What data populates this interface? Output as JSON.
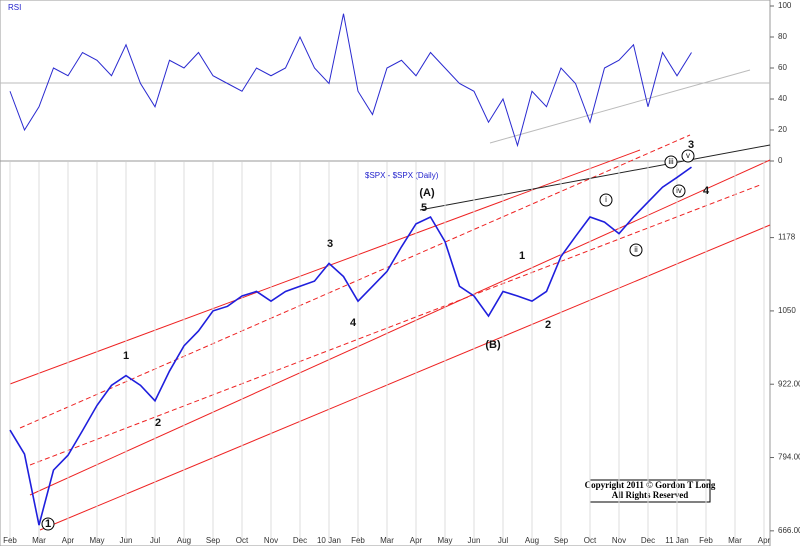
{
  "chart_data": [
    {
      "type": "line",
      "title": "RSI",
      "ylim": [
        0,
        100
      ],
      "yticks": [
        0,
        20,
        40,
        60,
        80,
        100
      ],
      "categories": [
        "Feb",
        null,
        "Mar",
        null,
        "Apr",
        null,
        "May",
        null,
        "Jun",
        null,
        "Jul",
        null,
        "Aug",
        null,
        "Sep",
        null,
        "Oct",
        null,
        "Nov",
        null,
        "Dec",
        null,
        "10 Jan",
        null,
        "Feb",
        null,
        "Mar",
        null,
        "Apr",
        null,
        "May",
        null,
        "Jun",
        null,
        "Jul",
        null,
        "Aug",
        null,
        "Sep",
        null,
        "Oct",
        null,
        "Nov",
        null,
        "Dec",
        null,
        "11 Jan",
        null,
        "Feb",
        null,
        "Mar",
        null,
        "Apr"
      ],
      "series": [
        {
          "name": "RSI",
          "color": "#2a2ad0",
          "values": [
            45,
            20,
            35,
            60,
            55,
            70,
            65,
            55,
            75,
            50,
            35,
            65,
            60,
            70,
            55,
            50,
            45,
            60,
            55,
            60,
            80,
            60,
            50,
            95,
            45,
            30,
            60,
            65,
            55,
            70,
            60,
            50,
            45,
            25,
            40,
            10,
            45,
            35,
            60,
            50,
            25,
            60,
            65,
            75,
            35,
            70,
            55,
            70,
            null,
            null,
            null,
            null,
            null
          ]
        }
      ]
    },
    {
      "type": "line",
      "title": "$SPX - $SPX (Daily)",
      "ylim": [
        650,
        1310
      ],
      "yticks": [
        {
          "value": 666,
          "label": "666.00"
        },
        {
          "value": 794,
          "label": "794.00"
        },
        {
          "value": 922,
          "label": "922.00"
        },
        1050,
        1178
      ],
      "categories": [
        "Feb",
        null,
        "Mar",
        null,
        "Apr",
        null,
        "May",
        null,
        "Jun",
        null,
        "Jul",
        null,
        "Aug",
        null,
        "Sep",
        null,
        "Oct",
        null,
        "Nov",
        null,
        "Dec",
        null,
        "10 Jan",
        null,
        "Feb",
        null,
        "Mar",
        null,
        "Apr",
        null,
        "May",
        null,
        "Jun",
        null,
        "Jul",
        null,
        "Aug",
        null,
        "Sep",
        null,
        "Oct",
        null,
        "Nov",
        null,
        "Dec",
        null,
        "11 Jan",
        null,
        "Feb",
        null,
        "Mar",
        null,
        "Apr"
      ],
      "series": [
        {
          "name": "$SPX",
          "color": "#1f1fdd",
          "values": [
            842,
            800,
            676,
            772,
            798,
            841,
            885,
            920,
            937,
            920,
            893,
            945,
            989,
            1015,
            1050,
            1058,
            1076,
            1084,
            1067,
            1084,
            1093,
            1102,
            1133,
            1110,
            1067,
            1093,
            1119,
            1162,
            1202,
            1214,
            1171,
            1093,
            1076,
            1041,
            1084,
            1076,
            1067,
            1084,
            1145,
            1180,
            1214,
            1205,
            1185,
            1214,
            1240,
            1266,
            1283,
            1301,
            null,
            null,
            null,
            null,
            null
          ]
        }
      ],
      "annotations": [
        "1",
        "1",
        "2",
        "3",
        "4",
        "5",
        "(A)",
        "(B)",
        "1",
        "2",
        "i",
        "ii",
        "iii",
        "iv",
        "v",
        "3",
        "4"
      ],
      "copyright": [
        "Copyright 2011 © Gordon T Long",
        "All Rights Reserved"
      ]
    }
  ]
}
